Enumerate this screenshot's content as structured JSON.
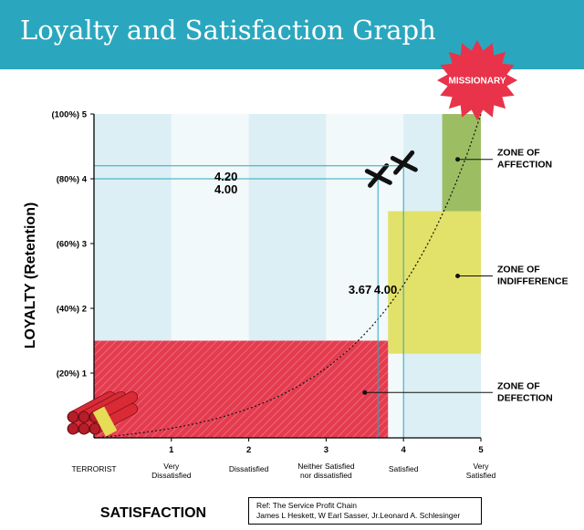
{
  "header": {
    "title": "Loyalty and Satisfaction Graph"
  },
  "chart_data": {
    "type": "scatter",
    "title": "Loyalty and Satisfaction Graph",
    "xlabel": "SATISFACTION",
    "ylabel": "LOYALTY (Retention)",
    "xlim": [
      0,
      5
    ],
    "ylim": [
      0,
      5
    ],
    "x_ticks": [
      "1",
      "2",
      "3",
      "4",
      "5"
    ],
    "x_tick_labels": [
      {
        "x": 0,
        "text": "TERRORIST"
      },
      {
        "x": 1,
        "text": "Very Dissatisfied"
      },
      {
        "x": 2,
        "text": "Dissatisfied"
      },
      {
        "x": 3,
        "text": "Neither Satisfied nor dissatisfied"
      },
      {
        "x": 4,
        "text": "Satisfied"
      },
      {
        "x": 5,
        "text": "Very Satisfied"
      }
    ],
    "y_tick_labels": [
      {
        "y": 1,
        "text": "(20%) 1"
      },
      {
        "y": 2,
        "text": "(40%) 2"
      },
      {
        "y": 3,
        "text": "(60%) 3"
      },
      {
        "y": 4,
        "text": "(80%) 4"
      },
      {
        "y": 5,
        "text": "(100%) 5"
      }
    ],
    "points": [
      {
        "x": 3.67,
        "y": 4.0,
        "x_label": "3.67",
        "y_label": "4.00"
      },
      {
        "x": 4.0,
        "y": 4.2,
        "x_label": "4.00",
        "y_label": "4.20"
      }
    ],
    "zones": [
      {
        "name": "ZONE OF AFFECTION",
        "x": [
          4.5,
          5
        ],
        "y": [
          3.5,
          5
        ],
        "color": "#9dbd63"
      },
      {
        "name": "ZONE OF INDIFFERENCE",
        "x": [
          3.8,
          5
        ],
        "y": [
          1.3,
          3.5
        ],
        "color": "#e2e16a"
      },
      {
        "name": "ZONE OF DEFECTION",
        "x": [
          0,
          3.8
        ],
        "y": [
          0,
          1.5
        ],
        "color": "#e43c4f"
      }
    ],
    "zone_labels": [
      {
        "lines": [
          "ZONE OF",
          "AFFECTION"
        ],
        "x": 4.7,
        "y": 4.3
      },
      {
        "lines": [
          "ZONE OF",
          "INDIFFERENCE"
        ],
        "x": 4.7,
        "y": 2.5
      },
      {
        "lines": [
          "ZONE OF",
          "DEFECTION"
        ],
        "x": 3.5,
        "y": 0.7
      }
    ],
    "annotations": {
      "missionary": "MISSIONARY"
    },
    "colors": {
      "band_dark": "#dbeff4",
      "band_light": "#f2f9fb",
      "guide": "#2aa7be",
      "header": "#2aa7be",
      "star": "#e8334a"
    },
    "grid": false
  },
  "reference": {
    "line1": "Ref: The Service Profit Chain",
    "line2": "James L Heskett,  W Earl Sasser, Jr.Leonard A. Schlesinger"
  }
}
